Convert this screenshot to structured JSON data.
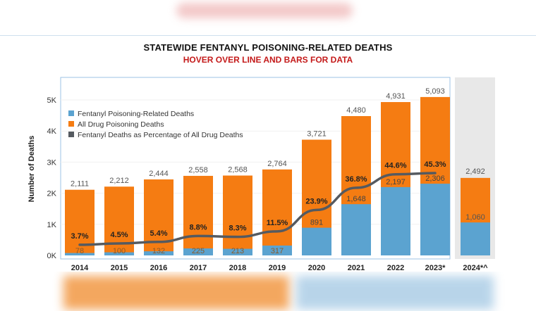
{
  "header": {
    "title": "STATEWIDE FENTANYL POISONING-RELATED DEATHS",
    "subtitle": "HOVER OVER LINE AND BARS FOR DATA"
  },
  "chart_data": {
    "type": "bar",
    "ylabel": "Number of Deaths",
    "ylim": [
      0,
      5600
    ],
    "yticks": [
      0,
      1000,
      2000,
      3000,
      4000,
      5000
    ],
    "ytick_labels": [
      "0K",
      "1K",
      "2K",
      "3K",
      "4K",
      "5K"
    ],
    "categories": [
      "2014",
      "2015",
      "2016",
      "2017",
      "2018",
      "2019",
      "2020",
      "2021",
      "2022",
      "2023*"
    ],
    "series": [
      {
        "name": "Fentanyl Poisoning-Related Deaths",
        "color": "#5ba3d0",
        "values": [
          78,
          100,
          132,
          225,
          213,
          317,
          891,
          1648,
          2197,
          2306
        ],
        "labels": [
          "78",
          "100",
          "132",
          "225",
          "213",
          "317",
          "891",
          "1,648",
          "2,197",
          "2,306"
        ]
      },
      {
        "name": "All Drug Poisoning Deaths",
        "color": "#f57c12",
        "values": [
          2111,
          2212,
          2444,
          2558,
          2568,
          2764,
          3721,
          4480,
          4931,
          5093
        ],
        "labels": [
          "2,111",
          "2,212",
          "2,444",
          "2,558",
          "2,568",
          "2,764",
          "3,721",
          "4,480",
          "4,931",
          "5,093"
        ]
      },
      {
        "name": "Fentanyl Deaths as Percentage of All Drug Deaths",
        "color": "#555a60",
        "values": [
          3.7,
          4.5,
          5.4,
          8.8,
          8.3,
          11.5,
          23.9,
          36.8,
          44.6,
          45.3
        ],
        "labels": [
          "3.7%",
          "4.5%",
          "5.4%",
          "8.8%",
          "8.3%",
          "11.5%",
          "23.9%",
          "36.8%",
          "44.6%",
          "45.3%"
        ]
      }
    ],
    "partial_year": {
      "category": "2024*^",
      "fentanyl": 1060,
      "fentanyl_label": "1,060",
      "all_drugs": 2492,
      "all_drugs_label": "2,492"
    },
    "legend_position": "top-left"
  }
}
